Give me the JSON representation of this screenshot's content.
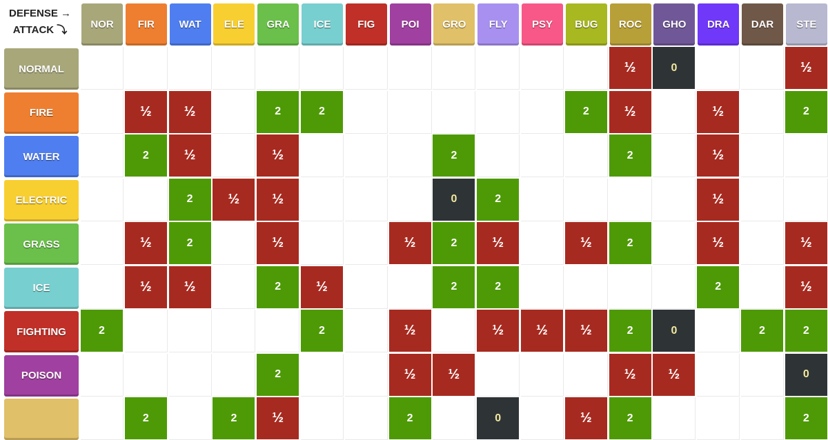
{
  "corner": {
    "defense_label": "DEFENSE →",
    "attack_label": "ATTACK ⤵"
  },
  "colors": {
    "super_effective": "#4e9a06",
    "not_very_effective": "#a72a20",
    "no_effect": "#2e3436"
  },
  "columns": [
    {
      "abbr": "NOR",
      "color": "#a8a77a"
    },
    {
      "abbr": "FIR",
      "color": "#ee7f30"
    },
    {
      "abbr": "WAT",
      "color": "#4f7ef0"
    },
    {
      "abbr": "ELE",
      "color": "#f8cf30"
    },
    {
      "abbr": "GRA",
      "color": "#6ac04a"
    },
    {
      "abbr": "ICE",
      "color": "#78cfcf"
    },
    {
      "abbr": "FIG",
      "color": "#c03028"
    },
    {
      "abbr": "POI",
      "color": "#a040a0"
    },
    {
      "abbr": "GRO",
      "color": "#e0c068"
    },
    {
      "abbr": "FLY",
      "color": "#a890f0"
    },
    {
      "abbr": "PSY",
      "color": "#f85888"
    },
    {
      "abbr": "BUG",
      "color": "#a8b820"
    },
    {
      "abbr": "ROC",
      "color": "#b8a038"
    },
    {
      "abbr": "GHO",
      "color": "#705898"
    },
    {
      "abbr": "DRA",
      "color": "#7038f8"
    },
    {
      "abbr": "DAR",
      "color": "#705848"
    },
    {
      "abbr": "STE",
      "color": "#b8b8d0"
    }
  ],
  "rows": [
    {
      "name": "NORMAL",
      "color": "#a8a77a",
      "cells": [
        "",
        "",
        "",
        "",
        "",
        "",
        "",
        "",
        "",
        "",
        "",
        "",
        "½",
        "0",
        "",
        "",
        "½"
      ]
    },
    {
      "name": "FIRE",
      "color": "#ee7f30",
      "cells": [
        "",
        "½",
        "½",
        "",
        "2",
        "2",
        "",
        "",
        "",
        "",
        "",
        "2",
        "½",
        "",
        "½",
        "",
        "2"
      ]
    },
    {
      "name": "WATER",
      "color": "#4f7ef0",
      "cells": [
        "",
        "2",
        "½",
        "",
        "½",
        "",
        "",
        "",
        "2",
        "",
        "",
        "",
        "2",
        "",
        "½",
        "",
        ""
      ]
    },
    {
      "name": "ELECTRIC",
      "color": "#f8cf30",
      "cells": [
        "",
        "",
        "2",
        "½",
        "½",
        "",
        "",
        "",
        "0",
        "2",
        "",
        "",
        "",
        "",
        "½",
        "",
        ""
      ]
    },
    {
      "name": "GRASS",
      "color": "#6ac04a",
      "cells": [
        "",
        "½",
        "2",
        "",
        "½",
        "",
        "",
        "½",
        "2",
        "½",
        "",
        "½",
        "2",
        "",
        "½",
        "",
        "½"
      ]
    },
    {
      "name": "ICE",
      "color": "#78cfcf",
      "cells": [
        "",
        "½",
        "½",
        "",
        "2",
        "½",
        "",
        "",
        "2",
        "2",
        "",
        "",
        "",
        "",
        "2",
        "",
        "½"
      ]
    },
    {
      "name": "FIGHTING",
      "color": "#c03028",
      "cells": [
        "2",
        "",
        "",
        "",
        "",
        "2",
        "",
        "½",
        "",
        "½",
        "½",
        "½",
        "2",
        "0",
        "",
        "2",
        "2"
      ]
    },
    {
      "name": "POISON",
      "color": "#a040a0",
      "cells": [
        "",
        "",
        "",
        "",
        "2",
        "",
        "",
        "½",
        "½",
        "",
        "",
        "",
        "½",
        "½",
        "",
        "",
        "0"
      ]
    },
    {
      "name": "",
      "color": "#e0c068",
      "cells": [
        "",
        "2",
        "",
        "2",
        "½",
        "",
        "",
        "2",
        "",
        "0",
        "",
        "½",
        "2",
        "",
        "",
        "",
        "2"
      ]
    }
  ]
}
